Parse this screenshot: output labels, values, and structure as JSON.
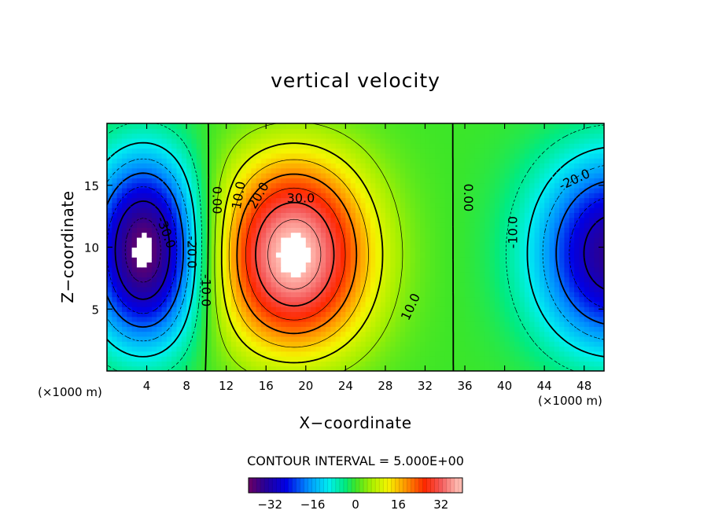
{
  "chart_data": {
    "type": "contour",
    "title": "vertical velocity",
    "xlabel": "X−coordinate",
    "ylabel": "Z−coordinate",
    "x_unit_left": "(×1000 m)",
    "x_unit_right": "(×1000 m)",
    "xlim": [
      0,
      50
    ],
    "ylim": [
      0,
      20
    ],
    "x_ticks": [
      4,
      8,
      12,
      16,
      20,
      24,
      28,
      32,
      36,
      40,
      44,
      48
    ],
    "y_ticks": [
      5,
      10,
      15
    ],
    "contour_interval_text": "CONTOUR INTERVAL = 5.000E+00",
    "contour_interval": 5,
    "colorbar": {
      "min": -40,
      "max": 40,
      "ticks": [
        -32,
        -16,
        0,
        16,
        32
      ]
    },
    "cells": [
      {
        "name": "updraft",
        "x": 18.8,
        "z": 8.8,
        "peak": 40
      },
      {
        "name": "downdraft-left",
        "x": 3.8,
        "z": 9.5,
        "peak": -40
      },
      {
        "name": "downdraft-right",
        "x": 51,
        "z": 9,
        "peak": -35
      }
    ],
    "contour_labels": [
      {
        "text": "30.0",
        "x": 19.5,
        "z": 14.0,
        "rot": 0
      },
      {
        "text": "20.0",
        "x": 15.2,
        "z": 14.2,
        "rot": -60
      },
      {
        "text": "10.0",
        "x": 13.2,
        "z": 14.2,
        "rot": -80
      },
      {
        "text": "10.0",
        "x": 30.5,
        "z": 5.2,
        "rot": -65
      },
      {
        "text": "0.00",
        "x": 11.1,
        "z": 13.8,
        "rot": 90
      },
      {
        "text": "0.00",
        "x": 36.4,
        "z": 14.0,
        "rot": 90
      },
      {
        "text": "-10.0",
        "x": 40.8,
        "z": 11.2,
        "rot": -90
      },
      {
        "text": "-20.0",
        "x": 47.0,
        "z": 15.5,
        "rot": -25
      },
      {
        "text": "-30.0",
        "x": 6.0,
        "z": 11.2,
        "rot": 70
      },
      {
        "text": "-20.0",
        "x": 8.6,
        "z": 9.6,
        "rot": 90
      },
      {
        "text": "-10.0",
        "x": 10.0,
        "z": 6.5,
        "rot": 90
      }
    ]
  }
}
